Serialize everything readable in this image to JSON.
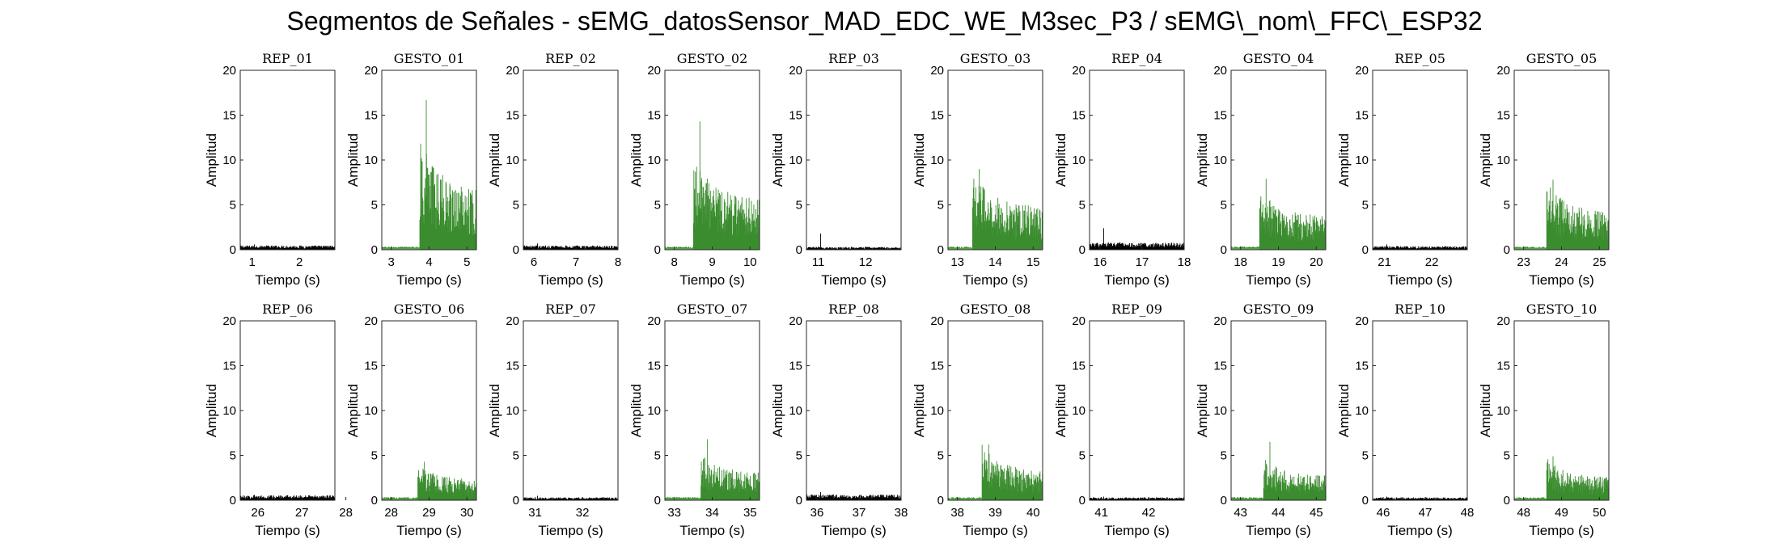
{
  "title": "Segmentos de Señales - sEMG_datosSensor_MAD_EDC_WE_M3sec_P3 / sEMG\\_nom\\_FFC\\_ESP32",
  "colors": {
    "rep": "#000000",
    "gesture": "#3a8c2e",
    "idle_gesture": "#69b957"
  },
  "chart_data": [
    {
      "type": "line",
      "title": "REP_01",
      "xlabel": "Tiempo (s)",
      "ylabel": "Amplitud",
      "xlim": [
        0.75,
        2.75
      ],
      "ylim": [
        0,
        20
      ],
      "xticks": [
        1,
        2
      ],
      "yticks": [
        0,
        5,
        10,
        15,
        20
      ],
      "series": [
        {
          "name": "REP_01",
          "kind": "rest",
          "onset": null,
          "level": 0.3,
          "peak": 0.6
        }
      ]
    },
    {
      "type": "line",
      "title": "GESTO_01",
      "xlabel": "Tiempo (s)",
      "ylabel": "Amplitud",
      "xlim": [
        2.75,
        5.25
      ],
      "ylim": [
        0,
        20
      ],
      "xticks": [
        3,
        4,
        5
      ],
      "yticks": [
        0,
        5,
        10,
        15,
        20
      ],
      "series": [
        {
          "name": "GESTO_01",
          "kind": "gesture",
          "onset": 3.75,
          "level": 4.5,
          "peak": 16.7
        }
      ]
    },
    {
      "type": "line",
      "title": "REP_02",
      "xlabel": "Tiempo (s)",
      "ylabel": "Amplitud",
      "xlim": [
        5.75,
        8.0
      ],
      "ylim": [
        0,
        20
      ],
      "xticks": [
        6,
        7,
        8
      ],
      "yticks": [
        0,
        5,
        10,
        15,
        20
      ],
      "series": [
        {
          "name": "REP_02",
          "kind": "rest",
          "onset": null,
          "level": 0.3,
          "peak": 0.7
        }
      ]
    },
    {
      "type": "line",
      "title": "GESTO_02",
      "xlabel": "Tiempo (s)",
      "ylabel": "Amplitud",
      "xlim": [
        7.75,
        10.25
      ],
      "ylim": [
        0,
        20
      ],
      "xticks": [
        8,
        9,
        10
      ],
      "yticks": [
        0,
        5,
        10,
        15,
        20
      ],
      "series": [
        {
          "name": "GESTO_02",
          "kind": "gesture",
          "onset": 8.5,
          "level": 4.0,
          "peak": 14.3
        }
      ]
    },
    {
      "type": "line",
      "title": "REP_03",
      "xlabel": "Tiempo (s)",
      "ylabel": "Amplitud",
      "xlim": [
        10.75,
        12.75
      ],
      "ylim": [
        0,
        20
      ],
      "xticks": [
        11,
        12
      ],
      "yticks": [
        0,
        5,
        10,
        15,
        20
      ],
      "series": [
        {
          "name": "REP_03",
          "kind": "rest",
          "onset": null,
          "level": 0.2,
          "peak": 1.8
        }
      ]
    },
    {
      "type": "line",
      "title": "GESTO_03",
      "xlabel": "Tiempo (s)",
      "ylabel": "Amplitud",
      "xlim": [
        12.75,
        15.25
      ],
      "ylim": [
        0,
        20
      ],
      "xticks": [
        13,
        14,
        15
      ],
      "yticks": [
        0,
        5,
        10,
        15,
        20
      ],
      "series": [
        {
          "name": "GESTO_03",
          "kind": "gesture",
          "onset": 13.4,
          "level": 3.2,
          "peak": 9.0
        }
      ]
    },
    {
      "type": "line",
      "title": "REP_04",
      "xlabel": "Tiempo (s)",
      "ylabel": "Amplitud",
      "xlim": [
        15.75,
        18.0
      ],
      "ylim": [
        0,
        20
      ],
      "xticks": [
        16,
        17,
        18
      ],
      "yticks": [
        0,
        5,
        10,
        15,
        20
      ],
      "series": [
        {
          "name": "REP_04",
          "kind": "rest",
          "onset": null,
          "level": 0.5,
          "peak": 2.4
        }
      ]
    },
    {
      "type": "line",
      "title": "GESTO_04",
      "xlabel": "Tiempo (s)",
      "ylabel": "Amplitud",
      "xlim": [
        17.75,
        20.25
      ],
      "ylim": [
        0,
        20
      ],
      "xticks": [
        18,
        19,
        20
      ],
      "yticks": [
        0,
        5,
        10,
        15,
        20
      ],
      "series": [
        {
          "name": "GESTO_04",
          "kind": "gesture",
          "onset": 18.5,
          "level": 2.5,
          "peak": 7.9
        }
      ]
    },
    {
      "type": "line",
      "title": "REP_05",
      "xlabel": "Tiempo (s)",
      "ylabel": "Amplitud",
      "xlim": [
        20.75,
        22.75
      ],
      "ylim": [
        0,
        20
      ],
      "xticks": [
        21,
        22
      ],
      "yticks": [
        0,
        5,
        10,
        15,
        20
      ],
      "series": [
        {
          "name": "REP_05",
          "kind": "rest",
          "onset": null,
          "level": 0.25,
          "peak": 0.6
        }
      ]
    },
    {
      "type": "line",
      "title": "GESTO_05",
      "xlabel": "Tiempo (s)",
      "ylabel": "Amplitud",
      "xlim": [
        22.75,
        25.25
      ],
      "ylim": [
        0,
        20
      ],
      "xticks": [
        23,
        24,
        25
      ],
      "yticks": [
        0,
        5,
        10,
        15,
        20
      ],
      "series": [
        {
          "name": "GESTO_05",
          "kind": "gesture",
          "onset": 23.6,
          "level": 2.8,
          "peak": 7.8
        }
      ]
    },
    {
      "type": "line",
      "title": "REP_06",
      "xlabel": "Tiempo (s)",
      "ylabel": "Amplitud",
      "xlim": [
        25.6,
        27.75
      ],
      "ylim": [
        0,
        20
      ],
      "xticks": [
        26,
        27,
        28
      ],
      "yticks": [
        0,
        5,
        10,
        15,
        20
      ],
      "series": [
        {
          "name": "REP_06",
          "kind": "rest",
          "onset": null,
          "level": 0.35,
          "peak": 0.6
        }
      ]
    },
    {
      "type": "line",
      "title": "GESTO_06",
      "xlabel": "Tiempo (s)",
      "ylabel": "Amplitud",
      "xlim": [
        27.75,
        30.25
      ],
      "ylim": [
        0,
        20
      ],
      "xticks": [
        28,
        29,
        30
      ],
      "yticks": [
        0,
        5,
        10,
        15,
        20
      ],
      "series": [
        {
          "name": "GESTO_06",
          "kind": "gesture",
          "onset": 28.7,
          "level": 1.5,
          "peak": 4.3
        }
      ]
    },
    {
      "type": "line",
      "title": "REP_07",
      "xlabel": "Tiempo (s)",
      "ylabel": "Amplitud",
      "xlim": [
        30.75,
        32.75
      ],
      "ylim": [
        0,
        20
      ],
      "xticks": [
        31,
        32
      ],
      "yticks": [
        0,
        5,
        10,
        15,
        20
      ],
      "series": [
        {
          "name": "REP_07",
          "kind": "rest",
          "onset": null,
          "level": 0.2,
          "peak": 0.5
        }
      ]
    },
    {
      "type": "line",
      "title": "GESTO_07",
      "xlabel": "Tiempo (s)",
      "ylabel": "Amplitud",
      "xlim": [
        32.75,
        35.25
      ],
      "ylim": [
        0,
        20
      ],
      "xticks": [
        33,
        34,
        35
      ],
      "yticks": [
        0,
        5,
        10,
        15,
        20
      ],
      "series": [
        {
          "name": "GESTO_07",
          "kind": "gesture",
          "onset": 33.7,
          "level": 2.0,
          "peak": 6.8
        }
      ]
    },
    {
      "type": "line",
      "title": "REP_08",
      "xlabel": "Tiempo (s)",
      "ylabel": "Amplitud",
      "xlim": [
        35.75,
        38.0
      ],
      "ylim": [
        0,
        20
      ],
      "xticks": [
        36,
        37,
        38
      ],
      "yticks": [
        0,
        5,
        10,
        15,
        20
      ],
      "series": [
        {
          "name": "REP_08",
          "kind": "rest",
          "onset": null,
          "level": 0.4,
          "peak": 0.9
        }
      ]
    },
    {
      "type": "line",
      "title": "GESTO_08",
      "xlabel": "Tiempo (s)",
      "ylabel": "Amplitud",
      "xlim": [
        37.75,
        40.25
      ],
      "ylim": [
        0,
        20
      ],
      "xticks": [
        38,
        39,
        40
      ],
      "yticks": [
        0,
        5,
        10,
        15,
        20
      ],
      "series": [
        {
          "name": "GESTO_08",
          "kind": "gesture",
          "onset": 38.65,
          "level": 2.2,
          "peak": 6.2
        }
      ]
    },
    {
      "type": "line",
      "title": "REP_09",
      "xlabel": "Tiempo (s)",
      "ylabel": "Amplitud",
      "xlim": [
        40.75,
        42.75
      ],
      "ylim": [
        0,
        20
      ],
      "xticks": [
        41,
        42
      ],
      "yticks": [
        0,
        5,
        10,
        15,
        20
      ],
      "series": [
        {
          "name": "REP_09",
          "kind": "rest",
          "onset": null,
          "level": 0.2,
          "peak": 0.4
        }
      ]
    },
    {
      "type": "line",
      "title": "GESTO_09",
      "xlabel": "Tiempo (s)",
      "ylabel": "Amplitud",
      "xlim": [
        42.75,
        45.25
      ],
      "ylim": [
        0,
        20
      ],
      "xticks": [
        43,
        44,
        45
      ],
      "yticks": [
        0,
        5,
        10,
        15,
        20
      ],
      "series": [
        {
          "name": "GESTO_09",
          "kind": "gesture",
          "onset": 43.6,
          "level": 1.8,
          "peak": 6.5
        }
      ]
    },
    {
      "type": "line",
      "title": "REP_10",
      "xlabel": "Tiempo (s)",
      "ylabel": "Amplitud",
      "xlim": [
        45.75,
        48.0
      ],
      "ylim": [
        0,
        20
      ],
      "xticks": [
        46,
        47,
        48
      ],
      "yticks": [
        0,
        5,
        10,
        15,
        20
      ],
      "series": [
        {
          "name": "REP_10",
          "kind": "rest",
          "onset": null,
          "level": 0.2,
          "peak": 0.4
        }
      ]
    },
    {
      "type": "line",
      "title": "GESTO_10",
      "xlabel": "Tiempo (s)",
      "ylabel": "Amplitud",
      "xlim": [
        47.75,
        50.25
      ],
      "ylim": [
        0,
        20
      ],
      "xticks": [
        48,
        49,
        50
      ],
      "yticks": [
        0,
        5,
        10,
        15,
        20
      ],
      "series": [
        {
          "name": "GESTO_10",
          "kind": "gesture",
          "onset": 48.6,
          "level": 1.7,
          "peak": 4.9
        }
      ]
    }
  ]
}
